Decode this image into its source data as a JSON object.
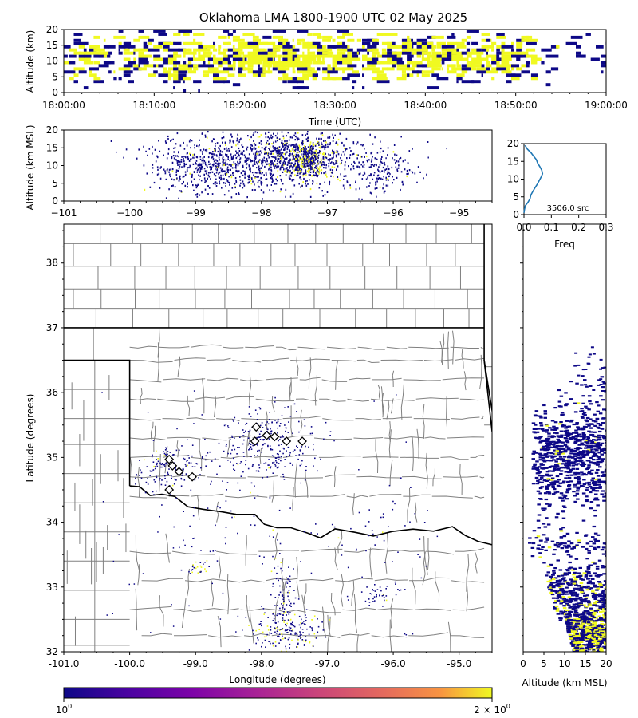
{
  "figure": {
    "title": "Oklahoma LMA 1800-1900 UTC 02 May 2025",
    "colors": {
      "low": "#0d0887",
      "mid": "#cc4778",
      "high": "#f0f921",
      "border": "#000000",
      "county": "#808080"
    }
  },
  "chart_data": [
    {
      "id": "time_height",
      "type": "heatmap",
      "xlabel": "Time (UTC)",
      "ylabel": "Altitude (km)",
      "xlim": [
        "18:00:00",
        "19:00:00"
      ],
      "ylim": [
        0,
        20
      ],
      "x_ticks": [
        "18:00:00",
        "18:10:00",
        "18:20:00",
        "18:30:00",
        "18:40:00",
        "18:50:00",
        "19:00:00"
      ],
      "y_ticks": [
        0,
        5,
        10,
        15,
        20
      ]
    },
    {
      "id": "lon_alt",
      "type": "heatmap",
      "xlabel": "",
      "ylabel": "Altitude (km MSL)",
      "xlim": [
        -101,
        -94.5
      ],
      "ylim": [
        0,
        20
      ],
      "x_ticks": [
        -101,
        -100,
        -99,
        -98,
        -97,
        -96,
        -95
      ],
      "y_ticks": [
        0,
        5,
        10,
        15,
        20
      ]
    },
    {
      "id": "alt_hist",
      "type": "line",
      "xlabel": "Freq",
      "xlim": [
        0,
        0.3
      ],
      "ylim": [
        0,
        20
      ],
      "x_ticks": [
        "0.0",
        "0.1",
        "0.2",
        "0.3"
      ],
      "y_ticks": [
        0,
        5,
        10,
        15,
        20
      ],
      "annotation": "3506.0 src",
      "series": [
        {
          "x": [
            0.0,
            0.002,
            0.005,
            0.015,
            0.022,
            0.025,
            0.032,
            0.04,
            0.048,
            0.055,
            0.062,
            0.068,
            0.065,
            0.058,
            0.05,
            0.045,
            0.04,
            0.035,
            0.03,
            0.025,
            0.018,
            0.012,
            0.008,
            0.004
          ],
          "y": [
            0.5,
            1.5,
            2.5,
            3.5,
            4.5,
            5.5,
            6.5,
            7.5,
            8.5,
            9.5,
            10.5,
            11.5,
            12.5,
            13.5,
            14.5,
            15.5,
            16.0,
            16.5,
            17.0,
            17.5,
            18.0,
            18.5,
            19.0,
            19.5
          ]
        }
      ]
    },
    {
      "id": "plan_view",
      "type": "scatter",
      "xlabel": "Longitude (degrees)",
      "ylabel": "Latitude (degrees)",
      "xlim": [
        -101.0,
        -94.5
      ],
      "ylim": [
        32.0,
        38.6
      ],
      "x_ticks": [
        "-101.0",
        "-100.0",
        "-99.0",
        "-98.0",
        "-97.0",
        "-96.0",
        "-95.0"
      ],
      "y_ticks": [
        32,
        33,
        34,
        35,
        36,
        37,
        38
      ],
      "stations": [
        {
          "lon": -98.08,
          "lat": 35.47
        },
        {
          "lon": -97.92,
          "lat": 35.34
        },
        {
          "lon": -98.1,
          "lat": 35.25
        },
        {
          "lon": -97.62,
          "lat": 35.25
        },
        {
          "lon": -97.38,
          "lat": 35.25
        },
        {
          "lon": -99.4,
          "lat": 34.97
        },
        {
          "lon": -99.35,
          "lat": 34.87
        },
        {
          "lon": -99.25,
          "lat": 34.78
        },
        {
          "lon": -99.05,
          "lat": 34.7
        },
        {
          "lon": -99.4,
          "lat": 34.5
        },
        {
          "lon": -97.8,
          "lat": 35.32
        }
      ],
      "clusters": [
        {
          "lon": -97.9,
          "lat": 35.2,
          "slon": 0.35,
          "slat": 0.25,
          "n": 260,
          "hi": 0.03
        },
        {
          "lon": -99.4,
          "lat": 34.8,
          "slon": 0.25,
          "slat": 0.18,
          "n": 150,
          "hi": 0.03
        },
        {
          "lon": -97.6,
          "lat": 32.3,
          "slon": 0.25,
          "slat": 0.15,
          "n": 180,
          "hi": 0.25
        },
        {
          "lon": -97.7,
          "lat": 32.9,
          "slon": 0.12,
          "slat": 0.35,
          "n": 90,
          "hi": 0.1
        },
        {
          "lon": -96.2,
          "lat": 32.9,
          "slon": 0.2,
          "slat": 0.12,
          "n": 40,
          "hi": 0.1
        },
        {
          "lon": -96.3,
          "lat": 33.8,
          "slon": 0.4,
          "slat": 0.3,
          "n": 40,
          "hi": 0.05
        },
        {
          "lon": -98.6,
          "lat": 34.2,
          "slon": 0.6,
          "slat": 0.6,
          "n": 60,
          "hi": 0.02
        },
        {
          "lon": -99.0,
          "lat": 33.27,
          "slon": 0.08,
          "slat": 0.05,
          "n": 25,
          "hi": 0.5
        }
      ]
    },
    {
      "id": "alt_lat",
      "type": "heatmap",
      "xlabel": "Altitude (km MSL)",
      "xlim": [
        0,
        20
      ],
      "ylim": [
        32.0,
        38.6
      ],
      "x_ticks": [
        0,
        5,
        10,
        15,
        20
      ]
    },
    {
      "id": "colorbar",
      "type": "heatmap",
      "tick_left": "10",
      "tick_left_exp": "0",
      "tick_right": "2 × 10",
      "tick_right_exp": "0"
    }
  ]
}
